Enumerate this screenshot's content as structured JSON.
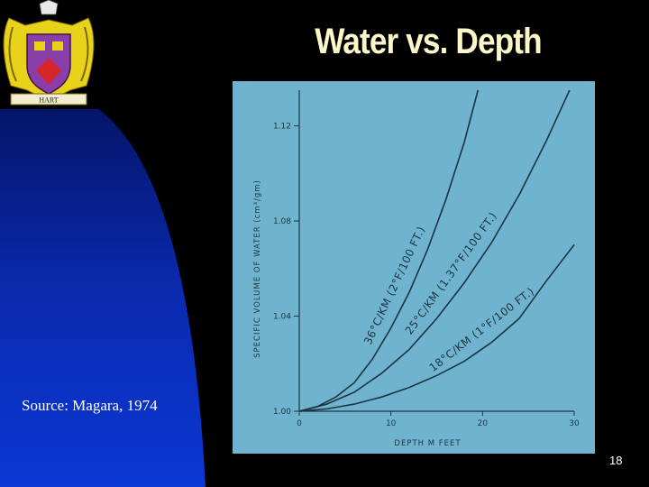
{
  "slide": {
    "title": "Water vs. Depth",
    "source": "Source: Magara, 1974",
    "page_number": "18"
  },
  "crest": {
    "banner_text": "HART",
    "icon": "coat-of-arms-icon"
  },
  "colors": {
    "background": "#000000",
    "blue_panel": "#0a2fb8",
    "chart_bg": "#6fb3cf",
    "title": "#fbf7c6"
  },
  "chart_data": {
    "type": "line",
    "xlabel": "DEPTH M FEET",
    "ylabel": "SPECIFIC VOLUME OF WATER (cm³/gm)",
    "xlim": [
      0,
      30
    ],
    "ylim": [
      1.0,
      1.135
    ],
    "xticks": [
      "0",
      "10",
      "20",
      "30"
    ],
    "yticks": [
      "1.00",
      "1.04",
      "1.08",
      "1.12"
    ],
    "series": [
      {
        "name": "36°C/KM (2°F/100 FT.)",
        "x": [
          0,
          2,
          4,
          6,
          8,
          10,
          12,
          14,
          16,
          18,
          19.5
        ],
        "y": [
          1.0,
          1.002,
          1.006,
          1.012,
          1.022,
          1.035,
          1.05,
          1.068,
          1.089,
          1.113,
          1.135
        ]
      },
      {
        "name": "25°C/KM (1.37°F/100 FT.)",
        "x": [
          0,
          3,
          6,
          9,
          12,
          15,
          18,
          21,
          24,
          27,
          29.5
        ],
        "y": [
          1.0,
          1.003,
          1.008,
          1.016,
          1.026,
          1.039,
          1.054,
          1.071,
          1.091,
          1.114,
          1.135
        ]
      },
      {
        "name": "18°C/KM (1°F/100 FT.)",
        "x": [
          0,
          3,
          6,
          9,
          12,
          15,
          18,
          21,
          24,
          27,
          30
        ],
        "y": [
          1.0,
          1.001,
          1.003,
          1.006,
          1.01,
          1.015,
          1.021,
          1.029,
          1.039,
          1.055,
          1.07
        ]
      }
    ]
  }
}
